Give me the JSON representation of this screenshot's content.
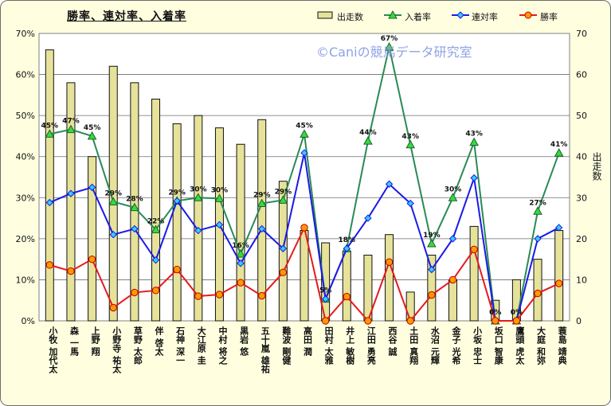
{
  "chart_data": {
    "type": "bar",
    "title": "勝率、連対率、入着率",
    "watermark": "©Caniの競馬データ研究室",
    "ylabel_left": "",
    "ylabel_right": "出走数",
    "ylim_left": [
      0,
      70
    ],
    "ylim_right": [
      0,
      70
    ],
    "yticks_left": [
      "0%",
      "10%",
      "20%",
      "30%",
      "40%",
      "50%",
      "60%",
      "70%"
    ],
    "yticks_right": [
      "0",
      "10",
      "20",
      "30",
      "40",
      "50",
      "60",
      "70"
    ],
    "grid": true,
    "legend_position": "top-right",
    "categories": [
      "小牧 加代太",
      "森 一馬",
      "上野 翔",
      "小野寺 祐太",
      "草野 太郎",
      "伴 啓太",
      "石神 深一",
      "大江原 圭",
      "中村 将之",
      "黒岩 悠",
      "五十嵐 雄祐",
      "難波 剛健",
      "高田 潤",
      "田村 太雅",
      "井上 敏樹",
      "江田 勇亮",
      "西谷 誠",
      "土田 真翔",
      "水沼 元輝",
      "金子 光希",
      "小坂 忠士",
      "坂口 智康",
      "鷹頭 虎太",
      "大庭 和弥",
      "蓑島 靖典"
    ],
    "series": [
      {
        "name": "出走数",
        "type": "bar",
        "axis": "right",
        "color": "#e6e29a",
        "values": [
          66,
          58,
          40,
          62,
          58,
          54,
          48,
          50,
          47,
          43,
          49,
          34,
          22,
          19,
          17,
          16,
          21,
          7,
          16,
          10,
          23,
          5,
          10,
          15,
          22
        ]
      },
      {
        "name": "入着率",
        "type": "line",
        "axis": "left",
        "color": "#2a8a55",
        "marker_color": "#33dd33",
        "values": [
          45.5,
          46.6,
          45.0,
          29.0,
          27.6,
          22.2,
          29.2,
          30.0,
          29.8,
          16.3,
          28.6,
          29.4,
          45.5,
          5.3,
          17.6,
          43.8,
          66.7,
          42.9,
          18.8,
          30.0,
          43.5,
          0.0,
          0.0,
          26.7,
          40.9
        ],
        "labels": [
          "45%",
          "47%",
          "45%",
          "29%",
          "28%",
          "22%",
          "29%",
          "30%",
          "30%",
          "16%",
          "29%",
          "29%",
          "45%",
          "5%",
          "18%",
          "44%",
          "67%",
          "43%",
          "19%",
          "30%",
          "43%",
          "0%",
          "0%",
          "27%",
          "41%"
        ]
      },
      {
        "name": "連対率",
        "type": "line",
        "axis": "left",
        "color": "#1a1ae6",
        "marker_color": "#33ccff",
        "values": [
          28.8,
          31.0,
          32.5,
          21.0,
          22.4,
          14.8,
          29.2,
          22.0,
          23.4,
          14.0,
          22.4,
          17.6,
          40.9,
          5.3,
          17.6,
          25.0,
          33.3,
          28.6,
          12.5,
          20.0,
          34.8,
          0.0,
          0.0,
          20.0,
          22.7
        ]
      },
      {
        "name": "勝率",
        "type": "line",
        "axis": "left",
        "color": "#e61a1a",
        "marker_color": "#ff9900",
        "values": [
          13.6,
          12.1,
          15.0,
          3.2,
          6.9,
          7.4,
          12.5,
          6.0,
          6.4,
          9.3,
          6.1,
          11.8,
          22.7,
          0.0,
          5.9,
          0.0,
          14.3,
          0.0,
          6.3,
          10.0,
          17.4,
          0.0,
          0.0,
          6.7,
          9.1
        ]
      }
    ]
  }
}
